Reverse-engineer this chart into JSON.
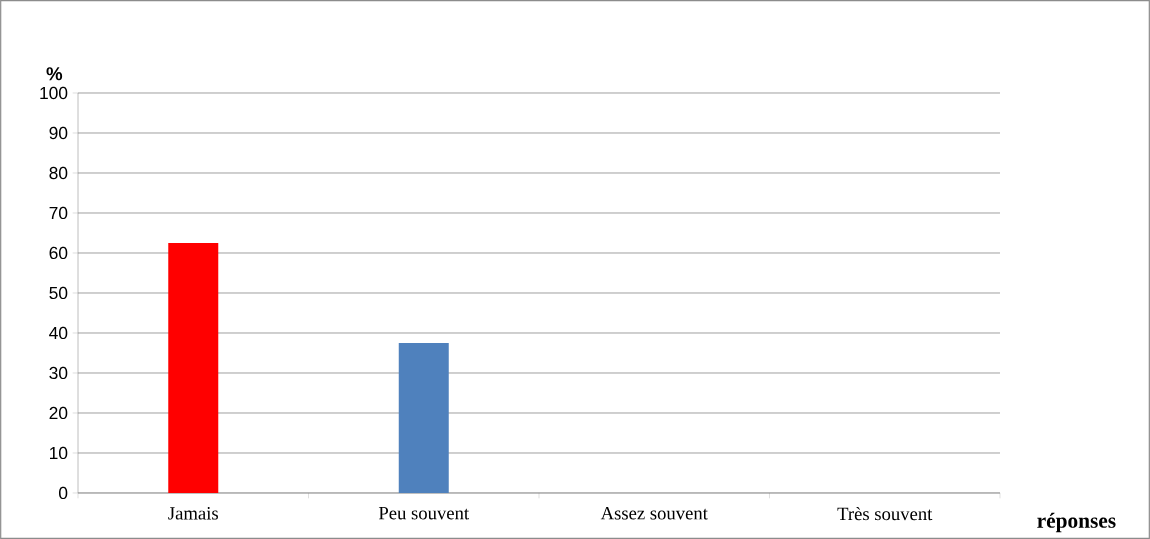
{
  "chart_data": {
    "type": "bar",
    "ylabel": "%",
    "xlabel": "réponses",
    "categories": [
      "Jamais",
      "Peu souvent",
      "Assez souvent",
      "Très souvent"
    ],
    "values": [
      62.5,
      37.5,
      0,
      0
    ],
    "colors": [
      "#ff0000",
      "#4f81bd",
      "#4f81bd",
      "#4f81bd"
    ],
    "ylim": [
      0,
      100
    ],
    "yticks": [
      0,
      10,
      20,
      30,
      40,
      50,
      60,
      70,
      80,
      90,
      100
    ],
    "grid": "y"
  }
}
